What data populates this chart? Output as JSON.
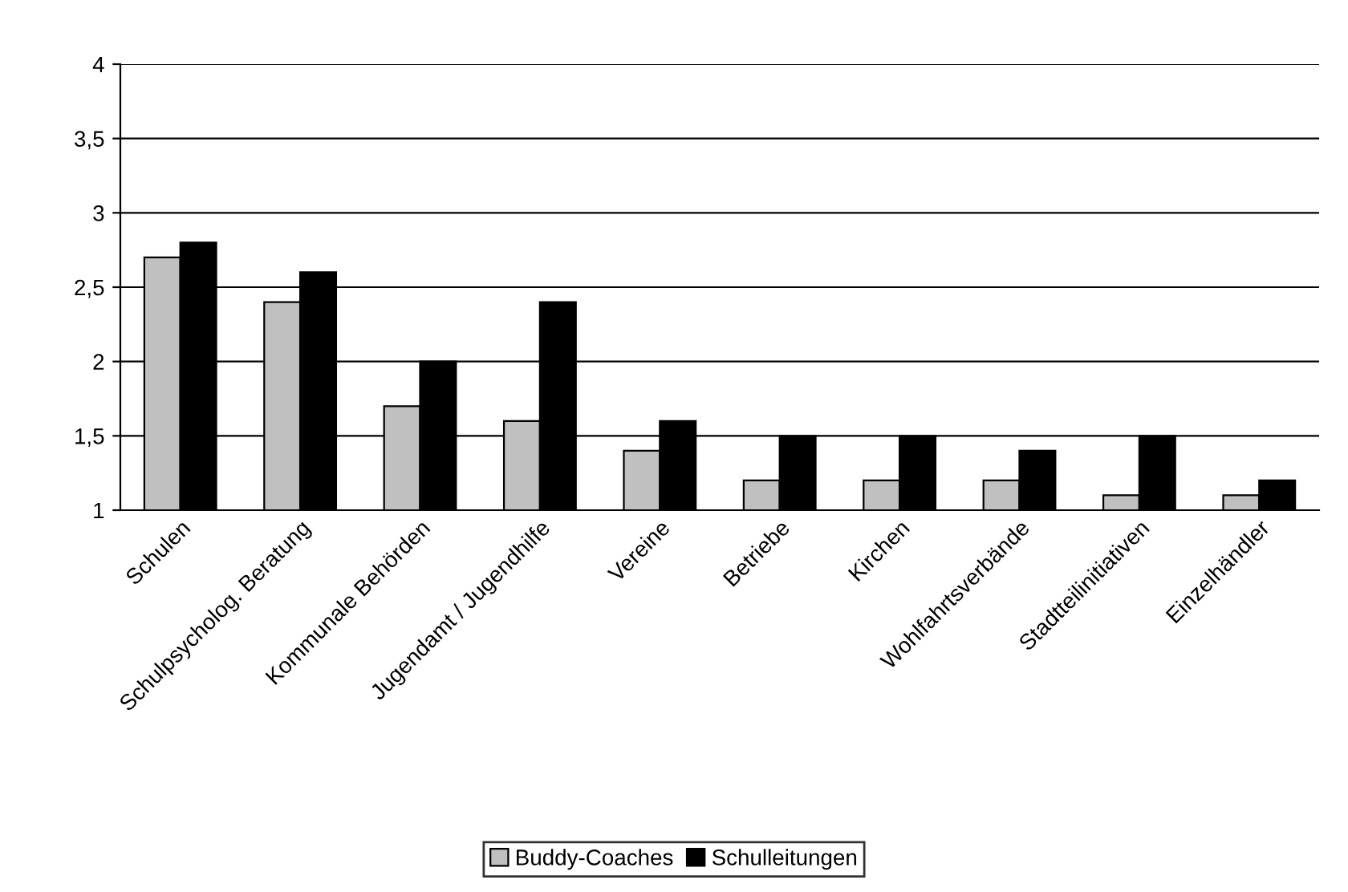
{
  "chart_data": {
    "type": "bar",
    "categories": [
      "Schulen",
      "Schulpsycholog. Beratung",
      "Kommunale Behörden",
      "Jugendamt / Jugendhilfe",
      "Vereine",
      "Betriebe",
      "Kirchen",
      "Wohlfahrtsverbände",
      "Stadtteilinitiativen",
      "Einzelhändler"
    ],
    "series": [
      {
        "name": "Buddy-Coaches",
        "color": "#c0c0c0",
        "values": [
          2.7,
          2.4,
          1.7,
          1.6,
          1.4,
          1.2,
          1.2,
          1.2,
          1.1,
          1.1
        ]
      },
      {
        "name": "Schulleitungen",
        "color": "#000000",
        "values": [
          2.8,
          2.6,
          2.0,
          2.4,
          1.6,
          1.5,
          1.5,
          1.4,
          1.5,
          1.2
        ]
      }
    ],
    "ylim": [
      1,
      4
    ],
    "yticks": [
      1,
      {
        "value": 1.5,
        "label": "1,5"
      },
      2,
      {
        "value": 2.5,
        "label": "2,5"
      },
      3,
      {
        "value": 3.5,
        "label": "3,5"
      },
      4
    ],
    "grid": "y",
    "legend": "bottom"
  }
}
